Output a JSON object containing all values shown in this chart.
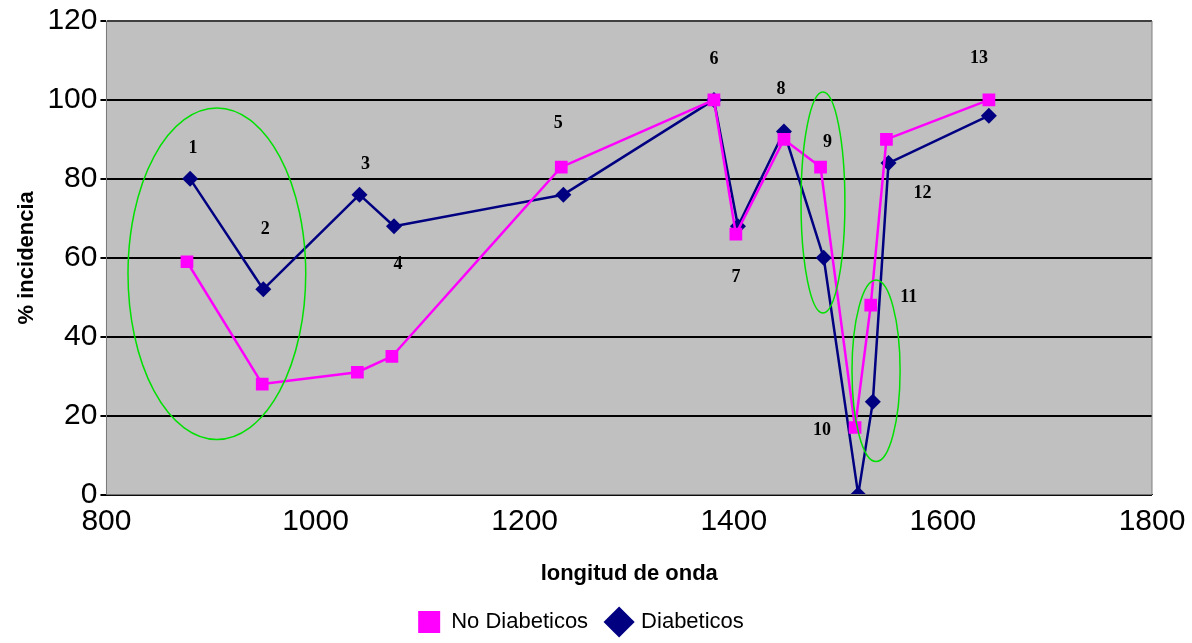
{
  "chart_data": {
    "type": "line",
    "xlabel": "longitud de onda",
    "ylabel": "% incidencia",
    "series": [
      {
        "name": "Diabeticos",
        "color": "#000080",
        "marker": "diamond",
        "x": [
          880,
          950,
          1042,
          1075,
          1237,
          1381,
          1404,
          1448,
          1486,
          1519,
          1533,
          1548,
          1644
        ],
        "values": [
          80,
          52,
          76,
          68,
          76,
          100,
          68,
          92,
          60,
          0,
          23.5,
          84,
          96
        ]
      },
      {
        "name": "No Diabeticos",
        "color": "#ff00ff",
        "marker": "square",
        "x": [
          877,
          949,
          1040,
          1073,
          1235,
          1381,
          1402,
          1448,
          1483,
          1516,
          1531,
          1546,
          1644
        ],
        "values": [
          59,
          28,
          31,
          35,
          83,
          100,
          66,
          90,
          83,
          17,
          48,
          90,
          100
        ]
      }
    ],
    "xlim": [
      800,
      1800
    ],
    "xticks": [
      800,
      1000,
      1200,
      1400,
      1600,
      1800
    ],
    "ylim": [
      0,
      120
    ],
    "yticks": [
      0,
      20,
      40,
      60,
      80,
      100,
      120
    ],
    "grid": "y",
    "legend": "bottom",
    "annotations": [
      {
        "text": "1",
        "x": 880,
        "y": 80
      },
      {
        "text": "2",
        "x": 950,
        "y": 52
      },
      {
        "text": "3",
        "x": 1042,
        "y": 76
      },
      {
        "text": "4",
        "x": 1075,
        "y": 68
      },
      {
        "text": "5",
        "x": 1235,
        "y": 83
      },
      {
        "text": "6",
        "x": 1381,
        "y": 100
      },
      {
        "text": "7",
        "x": 1404,
        "y": 68
      },
      {
        "text": "8",
        "x": 1448,
        "y": 92
      },
      {
        "text": "9",
        "x": 1483,
        "y": 83
      },
      {
        "text": "10",
        "x": 1516,
        "y": 17
      },
      {
        "text": "11",
        "x": 1531,
        "y": 48
      },
      {
        "text": "12",
        "x": 1548,
        "y": 84
      },
      {
        "text": "13",
        "x": 1644,
        "y": 100
      }
    ]
  }
}
